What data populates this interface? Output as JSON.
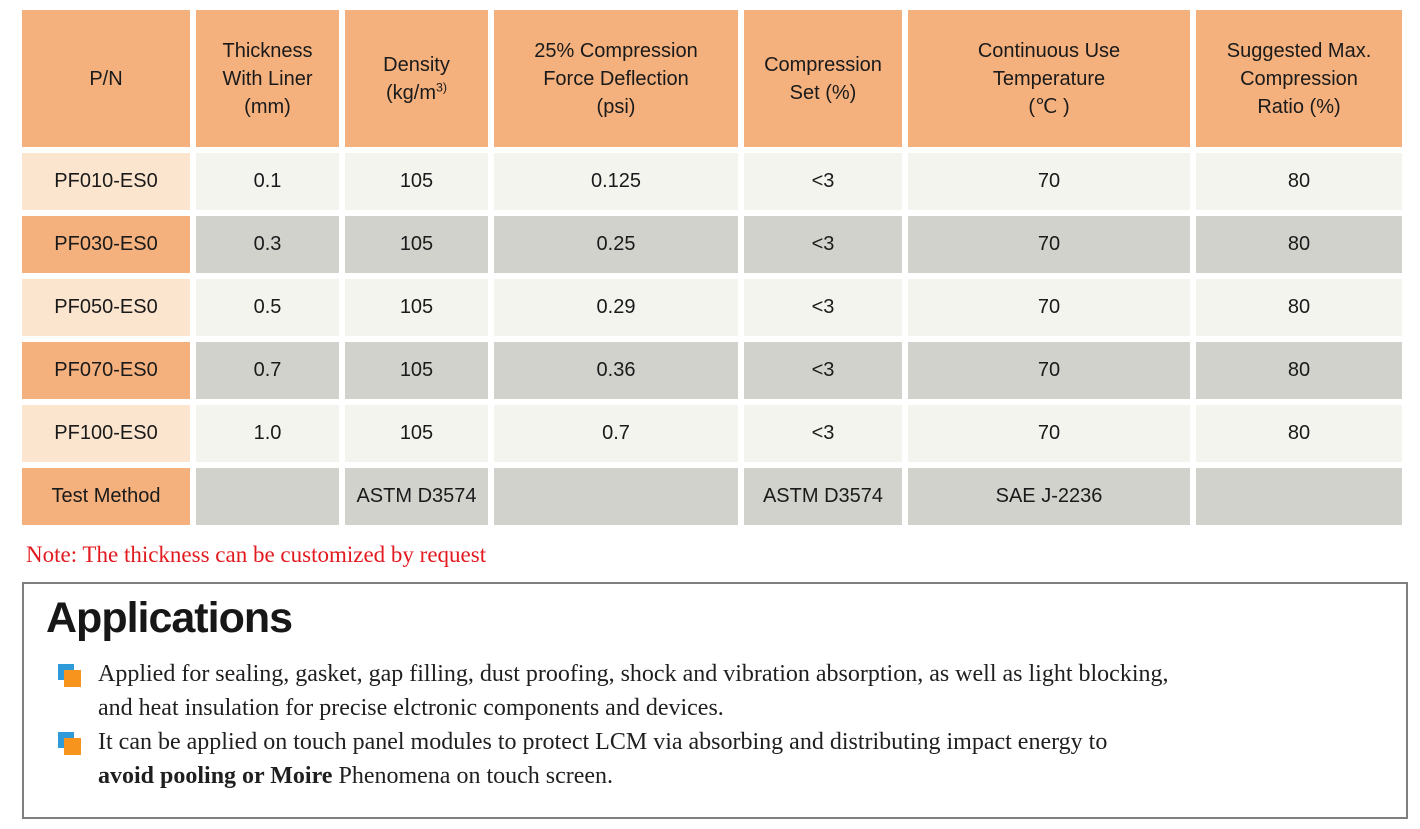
{
  "colors": {
    "header_bg": "#f4b17e",
    "label_light_bg": "#fce5cf",
    "cell_light_bg": "#f4f4ef",
    "cell_dark_bg": "#d2d2cd",
    "text": "#1a1a1a",
    "note_red": "#e21a1f",
    "box_border": "#7f7f7f",
    "bullet_blue": "#2e9ad8",
    "bullet_orange": "#f7941e"
  },
  "table": {
    "headers": [
      {
        "lines": [
          "P/N"
        ]
      },
      {
        "lines": [
          "Thickness",
          "With Liner",
          "(mm)"
        ]
      },
      {
        "lines": [
          "Density"
        ],
        "unit_prefix": "(kg/m",
        "unit_sup": "3)"
      },
      {
        "lines": [
          "25% Compression",
          "Force Deflection",
          "(psi)"
        ]
      },
      {
        "lines": [
          "Compression",
          "Set (%)"
        ]
      },
      {
        "lines": [
          "Continuous Use",
          "Temperature",
          "(℃ )"
        ]
      },
      {
        "lines": [
          "Suggested Max.",
          "Compression",
          "Ratio (%)"
        ]
      }
    ],
    "rows": [
      {
        "pn": "PF010-ES0",
        "variant": "light",
        "cells": [
          "0.1",
          "105",
          "0.125",
          "<3",
          "70",
          "80"
        ]
      },
      {
        "pn": "PF030-ES0",
        "variant": "dark",
        "cells": [
          "0.3",
          "105",
          "0.25",
          "<3",
          "70",
          "80"
        ]
      },
      {
        "pn": "PF050-ES0",
        "variant": "light",
        "cells": [
          "0.5",
          "105",
          "0.29",
          "<3",
          "70",
          "80"
        ]
      },
      {
        "pn": "PF070-ES0",
        "variant": "dark",
        "cells": [
          "0.7",
          "105",
          "0.36",
          "<3",
          "70",
          "80"
        ]
      },
      {
        "pn": "PF100-ES0",
        "variant": "light",
        "cells": [
          "1.0",
          "105",
          "0.7",
          "<3",
          "70",
          "80"
        ]
      },
      {
        "pn": "Test Method",
        "variant": "test",
        "cells": [
          "",
          "ASTM D3574",
          "",
          "ASTM D3574",
          "SAE J-2236",
          ""
        ]
      }
    ]
  },
  "note": {
    "text": "Note: The thickness can be customized by request"
  },
  "applications": {
    "title": "Applications",
    "bullets": [
      {
        "lines": [
          {
            "pre": "Applied for sealing, gasket, gap filling, dust proofing, shock and vibration absorption, as well as light blocking,",
            "bold": "",
            "post": ""
          },
          {
            "pre": "and heat insulation for precise elctronic components and devices.",
            "bold": "",
            "post": ""
          }
        ]
      },
      {
        "lines": [
          {
            "pre": "It can be applied on touch panel modules to protect LCM via absorbing and distributing impact energy to",
            "bold": "",
            "post": ""
          },
          {
            "pre": "",
            "bold": "avoid pooling or Moire",
            "post": " Phenomena on touch screen."
          }
        ]
      }
    ]
  }
}
